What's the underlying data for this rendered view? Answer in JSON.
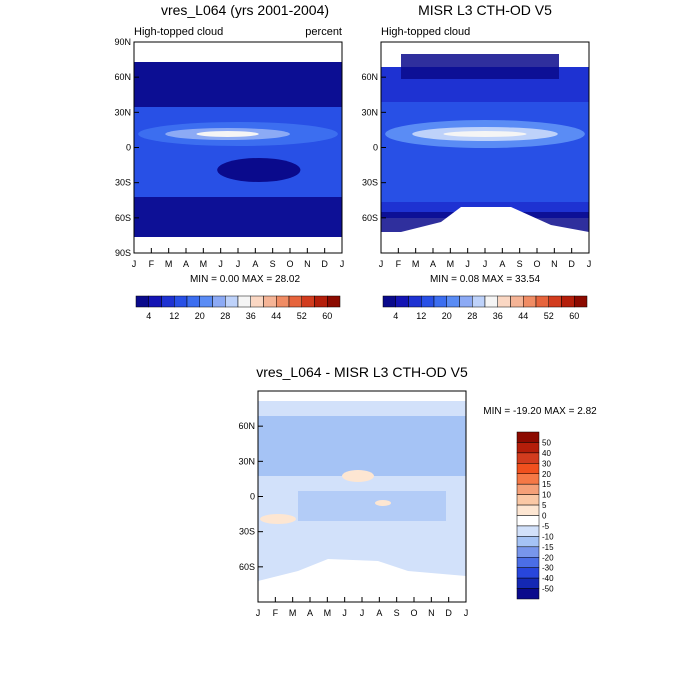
{
  "chart_data": [
    {
      "type": "heatmap",
      "title": "vres_L064 (yrs 2001-2004)",
      "subtitle_left": "High-topped cloud",
      "subtitle_right": "percent",
      "x_ticks": [
        "J",
        "F",
        "M",
        "A",
        "M",
        "J",
        "J",
        "A",
        "S",
        "O",
        "N",
        "D",
        "J"
      ],
      "y_ticks": [
        "90N",
        "60N",
        "30N",
        "0",
        "30S",
        "60S",
        "90S"
      ],
      "ylim": [
        -90,
        90
      ],
      "stats": "MIN =   0.00 MAX =  28.02",
      "colorbar_orientation": "horizontal",
      "colorbar_labels": [
        "4",
        "12",
        "20",
        "28",
        "36",
        "44",
        "52",
        "60"
      ],
      "colorbar_colors": [
        "#0a0a8c",
        "#1414b4",
        "#1e32d2",
        "#2850e6",
        "#3c6ef0",
        "#5a8cf5",
        "#8caaf5",
        "#bed2fa",
        "#f5f5f5",
        "#fad7c3",
        "#f5b496",
        "#f08c64",
        "#e6643c",
        "#d23c1e",
        "#b41e0a",
        "#8c0a00"
      ]
    },
    {
      "type": "heatmap",
      "title": "MISR L3 CTH-OD V5",
      "subtitle_left": "High-topped cloud",
      "x_ticks": [
        "J",
        "F",
        "M",
        "A",
        "M",
        "J",
        "J",
        "A",
        "S",
        "O",
        "N",
        "D",
        "J"
      ],
      "y_ticks": [
        "60N",
        "30N",
        "0",
        "30S",
        "60S"
      ],
      "stats": "MIN =   0.08 MAX =  33.54",
      "colorbar_orientation": "horizontal",
      "colorbar_labels": [
        "4",
        "12",
        "20",
        "28",
        "36",
        "44",
        "52",
        "60"
      ]
    },
    {
      "type": "heatmap",
      "title": "vres_L064 - MISR L3 CTH-OD V5",
      "x_ticks": [
        "J",
        "F",
        "M",
        "A",
        "M",
        "J",
        "J",
        "A",
        "S",
        "O",
        "N",
        "D",
        "J"
      ],
      "y_ticks": [
        "60N",
        "30N",
        "0",
        "30S",
        "60S"
      ],
      "stats": "MIN = -19.20 MAX =   2.82",
      "colorbar_orientation": "vertical",
      "colorbar_labels": [
        "50",
        "40",
        "30",
        "20",
        "15",
        "10",
        "5",
        "0",
        "-5",
        "-10",
        "-15",
        "-20",
        "-30",
        "-40",
        "-50"
      ],
      "colorbar_colors": [
        "#8c0a00",
        "#b41e0a",
        "#d23c1e",
        "#f0501e",
        "#f57846",
        "#f5a078",
        "#fac8a5",
        "#fde6d2",
        "#ffffff",
        "#d2e1fa",
        "#a5c3f5",
        "#7896eb",
        "#4b6ee6",
        "#2846dc",
        "#1428b4",
        "#0a0a8c"
      ]
    }
  ]
}
